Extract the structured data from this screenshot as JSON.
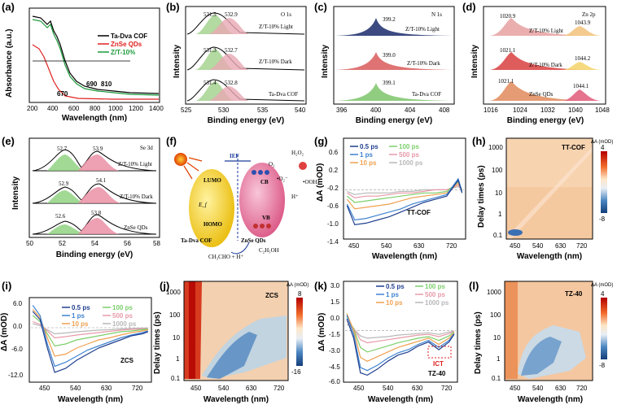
{
  "panels": {
    "a": {
      "label": "(a)",
      "xlabel": "Wavelength (nm)",
      "ylabel": "Absorbance (a.u.)",
      "xticks": [
        "200",
        "400",
        "600",
        "800",
        "1000",
        "1200",
        "1400"
      ],
      "legend": [
        {
          "name": "Ta-Dva COF",
          "color": "#000000"
        },
        {
          "name": "ZnSe QDs",
          "color": "#e02020"
        },
        {
          "name": "Z/T-10%",
          "color": "#1a9a3a"
        }
      ],
      "annotations": [
        "690",
        "810",
        "670"
      ]
    },
    "b": {
      "label": "(b)",
      "element": "O 1s",
      "xlabel": "Binding energy (eV)",
      "ylabel": "Intensity",
      "xticks": [
        "525",
        "530",
        "535",
        "540"
      ],
      "rows": [
        {
          "name": "Z/T-10% Light",
          "peaks": [
            "531.5",
            "532.9"
          ]
        },
        {
          "name": "Z/T-10% Dark",
          "peaks": [
            "531.3",
            "532.7"
          ]
        },
        {
          "name": "Ta-Dva COF",
          "peaks": [
            "531.4",
            "532.8"
          ]
        }
      ]
    },
    "c": {
      "label": "(c)",
      "element": "N 1s",
      "xlabel": "Binding energy (eV)",
      "ylabel": "Intensity",
      "xticks": [
        "396",
        "400",
        "404",
        "408"
      ],
      "rows": [
        {
          "name": "Z/T-10% Light",
          "peaks": [
            "399.2"
          ]
        },
        {
          "name": "Z/T-10% Dark",
          "peaks": [
            "399.0"
          ]
        },
        {
          "name": "Ta-Dva COF",
          "peaks": [
            "399.1"
          ]
        }
      ]
    },
    "d": {
      "label": "(d)",
      "element": "Zn 2p",
      "xlabel": "Binding energy (eV)",
      "ylabel": "Intensity",
      "xticks": [
        "1016",
        "1024",
        "1032",
        "1040",
        "1048"
      ],
      "rows": [
        {
          "name": "Z/T-10% Light",
          "peaks": [
            "1020.9",
            "1043.9"
          ]
        },
        {
          "name": "Z/T-10% Dark",
          "peaks": [
            "1021.1",
            "1044.2"
          ]
        },
        {
          "name": "ZnSe QDs",
          "peaks": [
            "1021.1",
            "1044.1"
          ]
        }
      ]
    },
    "e": {
      "label": "(e)",
      "element": "Se 3d",
      "xlabel": "Binding energy (eV)",
      "ylabel": "Intensity",
      "xticks": [
        "50",
        "52",
        "54",
        "56",
        "58"
      ],
      "rows": [
        {
          "name": "Z/T-10% Light",
          "peaks": [
            "52.7",
            "53.9"
          ]
        },
        {
          "name": "Z/T-10% Dark",
          "peaks": [
            "52.9",
            "54.1"
          ]
        },
        {
          "name": "ZnSe QDs",
          "peaks": [
            "52.6",
            "53.8"
          ]
        }
      ]
    },
    "f": {
      "label": "(f)",
      "iefLabel": "IEF",
      "lumo": "LUMO",
      "homo": "HOMO",
      "ef": "E_f",
      "cb": "CB",
      "vb": "VB",
      "cof": "Ta-Dva COF",
      "qds": "ZnSe QDs",
      "o2": "O₂",
      "o2rad": "•O₂⁻",
      "ooh": "•OOH",
      "h2o2": "H₂O₂",
      "hplus": "H⁺",
      "ethanol": "C₂H₅OH",
      "aldehyde": "CH₃CHO + H⁺",
      "eminus": "e⁻"
    },
    "g": {
      "label": "(g)",
      "sample": "TT-COF",
      "xlabel": "Wavelength (nm)",
      "ylabel": "ΔA (mOD)",
      "xticks": [
        "450",
        "540",
        "630",
        "720"
      ],
      "yticks": [
        "0.6",
        "0.2",
        "-0.2",
        "-0.6",
        "-1.0",
        "-1.4"
      ]
    },
    "h": {
      "label": "(h)",
      "sample": "TT-COF",
      "xlabel": "Wavelength (nm)",
      "ylabel": "Delay times (ps)",
      "xticks": [
        "450",
        "540",
        "630",
        "720"
      ],
      "yticks": [
        "1000",
        "100",
        "10",
        "1",
        "0.1"
      ],
      "cbar": {
        "title": "ΔA (mOD)",
        "max": "4",
        "min": "-8"
      }
    },
    "i": {
      "label": "(i)",
      "sample": "ZCS",
      "xlabel": "Wavelength (nm)",
      "ylabel": "ΔA (mOD)",
      "xticks": [
        "450",
        "540",
        "630",
        "720"
      ],
      "yticks": [
        "6.0",
        "0.0",
        "-6.0",
        "-12.0"
      ]
    },
    "j": {
      "label": "(j)",
      "sample": "ZCS",
      "xlabel": "Wavelength (nm)",
      "ylabel": "Delay times (ps)",
      "xticks": [
        "450",
        "540",
        "630",
        "720"
      ],
      "yticks": [
        "1000",
        "100",
        "10",
        "1",
        "0.1"
      ],
      "cbar": {
        "title": "ΔA (mOD)",
        "max": "8",
        "min": "-16"
      }
    },
    "k": {
      "label": "(k)",
      "sample": "TZ-40",
      "ict": "ICT",
      "xlabel": "Wavelength (nm)",
      "ylabel": "ΔA (mOD)",
      "xticks": [
        "450",
        "540",
        "630",
        "720"
      ],
      "yticks": [
        "3.0",
        "1.5",
        "0.0",
        "-1.5",
        "-3.0",
        "-4.5",
        "-6.0"
      ]
    },
    "l": {
      "label": "(l)",
      "sample": "TZ-40",
      "xlabel": "Wavelength (nm)",
      "ylabel": "Delay times (ps)",
      "xticks": [
        "450",
        "540",
        "630",
        "720"
      ],
      "yticks": [
        "1000",
        "100",
        "10",
        "1",
        "0.1"
      ],
      "cbar": {
        "title": "ΔA (mOD)",
        "max": "4",
        "min": "-8"
      }
    }
  },
  "delay_legend": [
    {
      "name": "0.5 ps",
      "color": "#1f3f8f"
    },
    {
      "name": "100 ps",
      "color": "#7ccf6a"
    },
    {
      "name": "1 ps",
      "color": "#3f83d0"
    },
    {
      "name": "500 ps",
      "color": "#e79aa8"
    },
    {
      "name": "10 ps",
      "color": "#f0a050"
    },
    {
      "name": "1000 ps",
      "color": "#b8b8b8"
    }
  ],
  "chart_data": [
    {
      "type": "line",
      "title": "(a)",
      "xlabel": "Wavelength (nm)",
      "ylabel": "Absorbance (a.u.)",
      "xlim": [
        200,
        1400
      ],
      "series": [
        {
          "name": "Ta-Dva COF",
          "x": [
            200,
            300,
            400,
            450,
            500,
            600,
            700,
            800,
            1000,
            1200,
            1400
          ],
          "y": [
            1.55,
            1.45,
            1.35,
            1.1,
            0.7,
            0.4,
            0.3,
            0.25,
            0.2,
            0.18,
            0.17
          ]
        },
        {
          "name": "ZnSe QDs",
          "x": [
            200,
            300,
            400,
            450,
            500,
            600,
            700,
            800,
            1000,
            1200,
            1400
          ],
          "y": [
            1.2,
            1.0,
            0.5,
            0.3,
            0.15,
            0.08,
            0.06,
            0.05,
            0.05,
            0.05,
            0.05
          ]
        },
        {
          "name": "Z/T-10%",
          "x": [
            200,
            300,
            400,
            450,
            500,
            600,
            700,
            800,
            1000,
            1200,
            1400
          ],
          "y": [
            1.5,
            1.4,
            1.3,
            1.05,
            0.65,
            0.38,
            0.28,
            0.22,
            0.18,
            0.16,
            0.15
          ]
        }
      ]
    },
    {
      "type": "line",
      "title": "(g) TT-COF",
      "xlabel": "Wavelength (nm)",
      "ylabel": "ΔA (mOD)",
      "x": [
        430,
        450,
        480,
        510,
        540,
        570,
        600,
        630,
        660,
        690,
        720,
        730
      ],
      "series": [
        {
          "name": "0.5 ps",
          "values": [
            -0.5,
            -1.1,
            -1.05,
            -0.95,
            -0.85,
            -0.7,
            -0.55,
            -0.4,
            -0.3,
            -0.2,
            0.3,
            -0.1
          ]
        },
        {
          "name": "1 ps",
          "values": [
            -0.45,
            -0.95,
            -0.9,
            -0.8,
            -0.7,
            -0.6,
            -0.45,
            -0.35,
            -0.25,
            -0.15,
            0.35,
            -0.05
          ]
        },
        {
          "name": "10 ps",
          "values": [
            -0.3,
            -0.6,
            -0.55,
            -0.5,
            -0.45,
            -0.35,
            -0.25,
            -0.2,
            -0.15,
            -0.1,
            0.2,
            0.0
          ]
        },
        {
          "name": "100 ps",
          "values": [
            -0.2,
            -0.4,
            -0.35,
            -0.3,
            -0.25,
            -0.2,
            -0.15,
            -0.1,
            -0.1,
            -0.05,
            0.25,
            0.0
          ]
        },
        {
          "name": "500 ps",
          "values": [
            -0.1,
            -0.25,
            -0.2,
            -0.2,
            -0.15,
            -0.1,
            -0.1,
            -0.05,
            0.0,
            0.0,
            0.15,
            0.0
          ]
        },
        {
          "name": "1000 ps",
          "values": [
            -0.05,
            -0.15,
            -0.1,
            -0.1,
            -0.1,
            -0.05,
            -0.05,
            0.0,
            0.0,
            0.0,
            0.1,
            0.0
          ]
        }
      ]
    },
    {
      "type": "line",
      "title": "(i) ZCS",
      "xlabel": "Wavelength (nm)",
      "ylabel": "ΔA (mOD)",
      "x": [
        420,
        440,
        460,
        480,
        510,
        540,
        570,
        600,
        630,
        660,
        690,
        720,
        735
      ],
      "series": [
        {
          "name": "0.5 ps",
          "values": [
            4.0,
            2.0,
            -5.0,
            -11.0,
            -10.0,
            -8.0,
            -6.5,
            -5.0,
            -4.0,
            -3.0,
            -2.0,
            -1.5,
            -1.0
          ]
        },
        {
          "name": "1 ps",
          "values": [
            5.5,
            3.0,
            -4.0,
            -9.5,
            -8.5,
            -7.0,
            -5.5,
            -4.5,
            -3.5,
            -2.5,
            -1.8,
            -1.2,
            -0.8
          ]
        },
        {
          "name": "10 ps",
          "values": [
            4.5,
            2.5,
            -2.5,
            -7.0,
            -6.5,
            -5.0,
            -4.0,
            -3.0,
            -2.5,
            -1.8,
            -1.2,
            -0.8,
            -0.5
          ]
        },
        {
          "name": "100 ps",
          "values": [
            3.0,
            1.5,
            -1.5,
            -4.5,
            -4.0,
            -3.0,
            -2.5,
            -2.0,
            -1.5,
            -1.0,
            -0.8,
            -0.5,
            -0.3
          ]
        },
        {
          "name": "500 ps",
          "values": [
            1.5,
            0.8,
            -0.8,
            -2.5,
            -2.2,
            -1.8,
            -1.5,
            -1.2,
            -0.9,
            -0.6,
            -0.4,
            -0.3,
            -0.2
          ]
        },
        {
          "name": "1000 ps",
          "values": [
            1.0,
            0.5,
            -0.5,
            -1.5,
            -1.3,
            -1.0,
            -0.8,
            -0.6,
            -0.5,
            -0.3,
            -0.2,
            -0.1,
            -0.1
          ]
        }
      ]
    },
    {
      "type": "line",
      "title": "(k) TZ-40",
      "xlabel": "Wavelength (nm)",
      "ylabel": "ΔA (mOD)",
      "x": [
        420,
        440,
        460,
        480,
        510,
        540,
        570,
        600,
        630,
        660,
        690,
        720,
        735
      ],
      "series": [
        {
          "name": "0.5 ps",
          "values": [
            1.5,
            -1.0,
            -5.5,
            -5.8,
            -5.0,
            -4.0,
            -3.2,
            -2.8,
            -2.0,
            -1.5,
            -2.5,
            -1.5,
            -0.5
          ]
        },
        {
          "name": "1 ps",
          "values": [
            2.0,
            -0.5,
            -4.8,
            -5.2,
            -4.5,
            -3.6,
            -2.9,
            -2.5,
            -1.8,
            -1.3,
            -2.2,
            -1.3,
            -0.4
          ]
        },
        {
          "name": "10 ps",
          "values": [
            2.2,
            0.0,
            -3.5,
            -4.0,
            -3.4,
            -2.8,
            -2.2,
            -1.8,
            -1.4,
            -1.0,
            -1.8,
            -1.0,
            -0.3
          ]
        },
        {
          "name": "100 ps",
          "values": [
            1.8,
            0.2,
            -2.2,
            -2.8,
            -2.4,
            -2.0,
            -1.6,
            -1.3,
            -1.0,
            -0.8,
            -1.3,
            -0.7,
            -0.2
          ]
        },
        {
          "name": "500 ps",
          "values": [
            1.2,
            0.3,
            -1.2,
            -1.6,
            -1.4,
            -1.2,
            -1.0,
            -0.8,
            -0.6,
            -0.5,
            -0.8,
            -0.4,
            -0.1
          ]
        },
        {
          "name": "1000 ps",
          "values": [
            0.8,
            0.2,
            -0.7,
            -1.0,
            -0.9,
            -0.8,
            -0.6,
            -0.5,
            -0.4,
            -0.3,
            -0.5,
            -0.2,
            -0.1
          ]
        }
      ]
    }
  ]
}
